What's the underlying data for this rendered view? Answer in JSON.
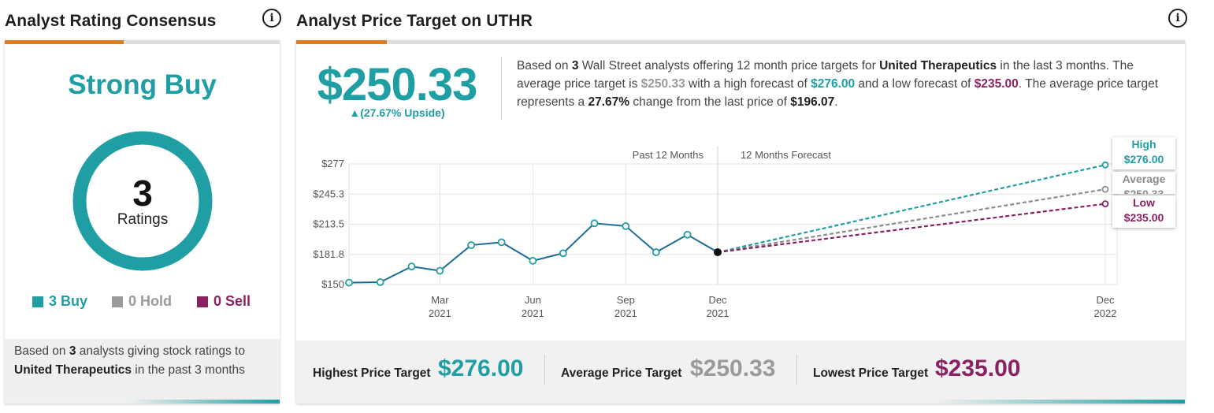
{
  "left_panel": {
    "title": "Analyst Rating Consensus",
    "rating": "Strong Buy",
    "total_count": "3",
    "total_label": "Ratings",
    "legend": [
      {
        "label": "3 Buy",
        "color": "#1f9ea3"
      },
      {
        "label": "0 Hold",
        "color": "#9a9a9a"
      },
      {
        "label": "0 Sell",
        "color": "#8a2262"
      }
    ],
    "counts": {
      "buy": 3,
      "hold": 0,
      "sell": 0
    },
    "note": {
      "pre": "Based on ",
      "count": "3",
      "mid": " analysts giving stock ratings to ",
      "company": "United Therapeutics",
      "post": " in the past 3 months"
    }
  },
  "right_panel": {
    "title": "Analyst Price Target on UTHR",
    "average_target": "$250.33",
    "upside": "▲(27.67% Upside)",
    "summary": {
      "p1": "Based on ",
      "analysts": "3",
      "p2": " Wall Street analysts offering 12 month price targets for ",
      "company": "United Therapeutics",
      "p3": " in the last 3 months. The average price target is ",
      "avg": "$250.33",
      "p4": " with a high forecast of ",
      "high": "$276.00",
      "p5": " and a low forecast of ",
      "low": "$235.00",
      "p6": ". The average price target represents a ",
      "change": "27.67%",
      "p7": " change from the last price of ",
      "last": "$196.07",
      "p8": "."
    },
    "forecast_labels": {
      "high_title": "High",
      "high_value": "$276.00",
      "avg_title": "Average",
      "avg_value": "$250.33",
      "low_title": "Low",
      "low_value": "$235.00"
    },
    "bottom": {
      "highest_label": "Highest Price Target",
      "highest_value": "$276.00",
      "average_label": "Average Price Target",
      "average_value": "$250.33",
      "lowest_label": "Lowest Price Target",
      "lowest_value": "$235.00"
    }
  },
  "colors": {
    "teal": "#1f9ea3",
    "gray": "#9a9a9a",
    "purple": "#8a2262",
    "orange": "#e07a1f",
    "history_line": "#1e6d96"
  },
  "chart_data": {
    "type": "line",
    "section_labels": [
      "Past 12 Months",
      "12 Months Forecast"
    ],
    "y_ticks": [
      "$277",
      "$245.3",
      "$213.5",
      "$181.8",
      "$150"
    ],
    "ylim": [
      150,
      277
    ],
    "x_ticks": [
      {
        "month": "Mar",
        "year": "2021"
      },
      {
        "month": "Jun",
        "year": "2021"
      },
      {
        "month": "Sep",
        "year": "2021"
      },
      {
        "month": "Dec",
        "year": "2021"
      },
      {
        "month": "Dec",
        "year": "2022"
      }
    ],
    "grid": true,
    "history": {
      "name": "Price",
      "x": [
        "2020-12-01",
        "2021-01-01",
        "2021-02-01",
        "2021-03-01",
        "2021-04-01",
        "2021-05-01",
        "2021-06-01",
        "2021-07-01",
        "2021-08-01",
        "2021-09-01",
        "2021-10-01",
        "2021-11-01",
        "2021-12-01"
      ],
      "values": [
        152.0,
        152.5,
        169.0,
        164.5,
        191.5,
        194.5,
        175.0,
        183.0,
        214.5,
        211.5,
        184.0,
        202.5,
        184.0
      ]
    },
    "forecasts": [
      {
        "name": "High",
        "x": [
          "2021-12-01",
          "2022-12-01"
        ],
        "values": [
          184.0,
          276.0
        ],
        "color": "#1f9ea3"
      },
      {
        "name": "Average",
        "x": [
          "2021-12-01",
          "2022-12-01"
        ],
        "values": [
          184.0,
          250.33
        ],
        "color": "#8c8c8c"
      },
      {
        "name": "Low",
        "x": [
          "2021-12-01",
          "2022-12-01"
        ],
        "values": [
          184.0,
          235.0
        ],
        "color": "#8a2262"
      }
    ]
  }
}
